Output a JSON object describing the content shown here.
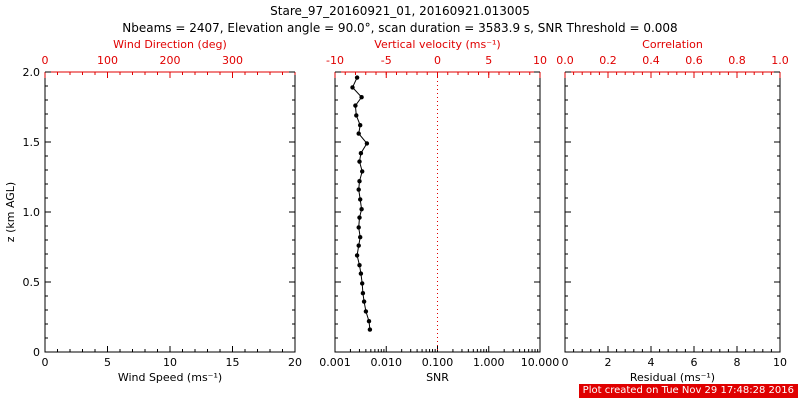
{
  "header": {
    "title": "Stare_97_20160921_01, 20160921.013005",
    "subtitle": "Nbeams = 2407, Elevation angle = 90.0°, scan duration = 3583.9 s, SNR Threshold = 0.008"
  },
  "footer": {
    "stamp": "Plot created on Tue Nov 29 17:48:28 2016"
  },
  "colors": {
    "red": "#e00000",
    "black": "#000000",
    "white": "#ffffff",
    "background": "#ffffff"
  },
  "chart_data": [
    {
      "name": "wind-speed-direction",
      "type": "line",
      "bottom_axis": {
        "label": "Wind Speed (ms⁻¹)",
        "range": [
          0,
          20
        ],
        "ticks": [
          0,
          5,
          10,
          15,
          20
        ],
        "tick_labels": [
          "0",
          "5",
          "10",
          "15",
          "20"
        ]
      },
      "top_axis": {
        "label": "Wind Direction (deg)",
        "range": [
          0,
          400
        ],
        "ticks": [
          0,
          100,
          200,
          300
        ],
        "tick_labels": [
          "0",
          "100",
          "200",
          "300"
        ],
        "color_role": "red"
      },
      "y_axis": {
        "label": "z (km AGL)",
        "range": [
          0,
          2
        ],
        "ticks": [
          0,
          0.5,
          1,
          1.5,
          2
        ],
        "tick_labels": [
          "0",
          "0.5",
          "1.0",
          "1.5",
          "2.0"
        ],
        "show_labels": true
      },
      "series": []
    },
    {
      "name": "snr-vertical-velocity",
      "type": "scatter-line",
      "bottom_axis": {
        "label": "SNR",
        "scale": "log",
        "range": [
          0.001,
          10
        ],
        "ticks": [
          0.001,
          0.01,
          0.1,
          1,
          10
        ],
        "tick_labels": [
          "0.001",
          "0.010",
          "0.100",
          "1.000",
          "10.000"
        ]
      },
      "top_axis": {
        "label": "Vertical velocity (ms⁻¹)",
        "range": [
          -10,
          10
        ],
        "ticks": [
          -10,
          -5,
          0,
          5,
          10
        ],
        "tick_labels": [
          "-10",
          "-5",
          "0",
          "5",
          "10"
        ],
        "color_role": "red"
      },
      "y_axis": {
        "range": [
          0,
          2
        ],
        "ticks": [
          0,
          0.5,
          1,
          1.5,
          2
        ],
        "show_labels": false
      },
      "reference_line": {
        "axis": "top",
        "value": 0,
        "style": "dotted",
        "color_role": "red"
      },
      "series": [
        {
          "name": "snr-profile",
          "marker": "circle",
          "points": [
            [
              0.0048,
              0.16
            ],
            [
              0.0046,
              0.22
            ],
            [
              0.004,
              0.29
            ],
            [
              0.0037,
              0.36
            ],
            [
              0.0035,
              0.42
            ],
            [
              0.0034,
              0.49
            ],
            [
              0.0032,
              0.56
            ],
            [
              0.003,
              0.62
            ],
            [
              0.0027,
              0.69
            ],
            [
              0.0029,
              0.76
            ],
            [
              0.0031,
              0.82
            ],
            [
              0.0029,
              0.89
            ],
            [
              0.003,
              0.96
            ],
            [
              0.0033,
              1.02
            ],
            [
              0.0031,
              1.09
            ],
            [
              0.0029,
              1.16
            ],
            [
              0.003,
              1.22
            ],
            [
              0.0034,
              1.29
            ],
            [
              0.003,
              1.36
            ],
            [
              0.0032,
              1.42
            ],
            [
              0.0042,
              1.49
            ],
            [
              0.0029,
              1.56
            ],
            [
              0.0031,
              1.62
            ],
            [
              0.0026,
              1.69
            ],
            [
              0.0025,
              1.76
            ],
            [
              0.0033,
              1.82
            ],
            [
              0.0022,
              1.89
            ],
            [
              0.0027,
              1.96
            ]
          ]
        }
      ]
    },
    {
      "name": "residual-correlation",
      "type": "line",
      "bottom_axis": {
        "label": "Residual (ms⁻¹)",
        "range": [
          0,
          10
        ],
        "ticks": [
          0,
          2,
          4,
          6,
          8,
          10
        ],
        "tick_labels": [
          "0",
          "2",
          "4",
          "6",
          "8",
          "10"
        ]
      },
      "top_axis": {
        "label": "Correlation",
        "range": [
          0,
          1
        ],
        "ticks": [
          0,
          0.2,
          0.4,
          0.6,
          0.8,
          1
        ],
        "tick_labels": [
          "0.0",
          "0.2",
          "0.4",
          "0.6",
          "0.8",
          "1.0"
        ],
        "color_role": "red"
      },
      "y_axis": {
        "range": [
          0,
          2
        ],
        "ticks": [
          0,
          0.5,
          1,
          1.5,
          2
        ],
        "show_labels": false
      },
      "series": []
    }
  ]
}
